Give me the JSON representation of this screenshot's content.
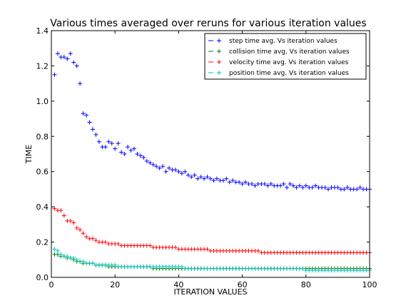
{
  "chart_data": {
    "type": "scatter",
    "title": "Various times averaged over reruns for various iteration values",
    "xlabel": "ITERATION VALUES",
    "ylabel": "TIME",
    "xlim": [
      0,
      100
    ],
    "ylim": [
      0,
      1.4
    ],
    "xticks": [
      "0",
      "20",
      "40",
      "60",
      "80",
      "100"
    ],
    "yticks": [
      "0.0",
      "0.2",
      "0.4",
      "0.6",
      "0.8",
      "1.0",
      "1.2",
      "1.4"
    ],
    "grid": false,
    "legend_position": "top-right",
    "series": [
      {
        "name": "step time avg. Vs iteration values",
        "color": "#0000ff",
        "x": [
          1,
          2,
          3,
          4,
          5,
          6,
          7,
          8,
          9,
          10,
          11,
          12,
          13,
          14,
          15,
          16,
          17,
          18,
          19,
          20,
          21,
          22,
          23,
          24,
          25,
          26,
          27,
          28,
          29,
          30,
          31,
          32,
          33,
          34,
          35,
          36,
          37,
          38,
          39,
          40,
          41,
          42,
          43,
          44,
          45,
          46,
          47,
          48,
          49,
          50,
          51,
          52,
          53,
          54,
          55,
          56,
          57,
          58,
          59,
          60,
          61,
          62,
          63,
          64,
          65,
          66,
          67,
          68,
          69,
          70,
          71,
          72,
          73,
          74,
          75,
          76,
          77,
          78,
          79,
          80,
          81,
          82,
          83,
          84,
          85,
          86,
          87,
          88,
          89,
          90,
          91,
          92,
          93,
          94,
          95,
          96,
          97,
          98,
          99,
          100
        ],
        "y": [
          1.15,
          1.27,
          1.25,
          1.25,
          1.24,
          1.27,
          1.22,
          1.2,
          1.1,
          0.93,
          0.92,
          0.88,
          0.84,
          0.81,
          0.77,
          0.74,
          0.74,
          0.77,
          0.76,
          0.73,
          0.76,
          0.71,
          0.7,
          0.74,
          0.72,
          0.73,
          0.7,
          0.69,
          0.68,
          0.66,
          0.65,
          0.64,
          0.63,
          0.62,
          0.63,
          0.6,
          0.62,
          0.61,
          0.61,
          0.6,
          0.59,
          0.6,
          0.58,
          0.57,
          0.58,
          0.56,
          0.57,
          0.56,
          0.57,
          0.56,
          0.55,
          0.56,
          0.55,
          0.55,
          0.56,
          0.54,
          0.55,
          0.54,
          0.54,
          0.53,
          0.54,
          0.53,
          0.53,
          0.52,
          0.53,
          0.53,
          0.53,
          0.52,
          0.53,
          0.52,
          0.52,
          0.52,
          0.53,
          0.51,
          0.53,
          0.52,
          0.51,
          0.52,
          0.51,
          0.52,
          0.51,
          0.51,
          0.52,
          0.51,
          0.51,
          0.51,
          0.5,
          0.51,
          0.51,
          0.51,
          0.5,
          0.5,
          0.51,
          0.5,
          0.5,
          0.5,
          0.51,
          0.5,
          0.5,
          0.5
        ]
      },
      {
        "name": "collision time avg. Vs iteration values",
        "color": "#008000",
        "x": [
          1,
          2,
          3,
          4,
          5,
          6,
          7,
          8,
          9,
          10,
          11,
          12,
          13,
          14,
          15,
          16,
          17,
          18,
          19,
          20,
          21,
          22,
          23,
          24,
          25,
          26,
          27,
          28,
          29,
          30,
          31,
          32,
          33,
          34,
          35,
          36,
          37,
          38,
          39,
          40,
          41,
          42,
          43,
          44,
          45,
          46,
          47,
          48,
          49,
          50,
          51,
          52,
          53,
          54,
          55,
          56,
          57,
          58,
          59,
          60,
          61,
          62,
          63,
          64,
          65,
          66,
          67,
          68,
          69,
          70,
          71,
          72,
          73,
          74,
          75,
          76,
          77,
          78,
          79,
          80,
          81,
          82,
          83,
          84,
          85,
          86,
          87,
          88,
          89,
          90,
          91,
          92,
          93,
          94,
          95,
          96,
          97,
          98,
          99,
          100
        ],
        "y": [
          0.13,
          0.13,
          0.12,
          0.12,
          0.11,
          0.11,
          0.1,
          0.09,
          0.09,
          0.08,
          0.08,
          0.08,
          0.08,
          0.07,
          0.07,
          0.07,
          0.07,
          0.06,
          0.06,
          0.06,
          0.06,
          0.06,
          0.06,
          0.06,
          0.06,
          0.06,
          0.06,
          0.06,
          0.06,
          0.06,
          0.06,
          0.05,
          0.05,
          0.05,
          0.05,
          0.05,
          0.05,
          0.05,
          0.05,
          0.05,
          0.05,
          0.05,
          0.05,
          0.05,
          0.05,
          0.05,
          0.05,
          0.05,
          0.05,
          0.05,
          0.05,
          0.05,
          0.05,
          0.05,
          0.05,
          0.05,
          0.05,
          0.05,
          0.05,
          0.05,
          0.05,
          0.05,
          0.05,
          0.05,
          0.05,
          0.05,
          0.05,
          0.05,
          0.05,
          0.05,
          0.05,
          0.05,
          0.05,
          0.05,
          0.05,
          0.05,
          0.05,
          0.05,
          0.05,
          0.05,
          0.05,
          0.05,
          0.05,
          0.05,
          0.05,
          0.05,
          0.05,
          0.05,
          0.05,
          0.05,
          0.05,
          0.05,
          0.05,
          0.05,
          0.05,
          0.05,
          0.05,
          0.05,
          0.05,
          0.05
        ]
      },
      {
        "name": "velocity time avg. Vs iteration values",
        "color": "#ff0000",
        "x": [
          1,
          2,
          3,
          4,
          5,
          6,
          7,
          8,
          9,
          10,
          11,
          12,
          13,
          14,
          15,
          16,
          17,
          18,
          19,
          20,
          21,
          22,
          23,
          24,
          25,
          26,
          27,
          28,
          29,
          30,
          31,
          32,
          33,
          34,
          35,
          36,
          37,
          38,
          39,
          40,
          41,
          42,
          43,
          44,
          45,
          46,
          47,
          48,
          49,
          50,
          51,
          52,
          53,
          54,
          55,
          56,
          57,
          58,
          59,
          60,
          61,
          62,
          63,
          64,
          65,
          66,
          67,
          68,
          69,
          70,
          71,
          72,
          73,
          74,
          75,
          76,
          77,
          78,
          79,
          80,
          81,
          82,
          83,
          84,
          85,
          86,
          87,
          88,
          89,
          90,
          91,
          92,
          93,
          94,
          95,
          96,
          97,
          98,
          99,
          100
        ],
        "y": [
          0.39,
          0.38,
          0.38,
          0.35,
          0.32,
          0.32,
          0.31,
          0.28,
          0.27,
          0.25,
          0.23,
          0.22,
          0.22,
          0.21,
          0.2,
          0.2,
          0.2,
          0.19,
          0.19,
          0.19,
          0.19,
          0.18,
          0.18,
          0.18,
          0.18,
          0.18,
          0.18,
          0.18,
          0.18,
          0.18,
          0.18,
          0.17,
          0.17,
          0.17,
          0.17,
          0.17,
          0.17,
          0.17,
          0.17,
          0.16,
          0.16,
          0.16,
          0.16,
          0.16,
          0.16,
          0.16,
          0.16,
          0.16,
          0.16,
          0.15,
          0.15,
          0.15,
          0.15,
          0.15,
          0.15,
          0.15,
          0.15,
          0.15,
          0.15,
          0.15,
          0.15,
          0.15,
          0.15,
          0.15,
          0.15,
          0.14,
          0.14,
          0.14,
          0.14,
          0.14,
          0.14,
          0.14,
          0.14,
          0.14,
          0.14,
          0.14,
          0.14,
          0.14,
          0.14,
          0.14,
          0.14,
          0.14,
          0.14,
          0.14,
          0.14,
          0.14,
          0.14,
          0.14,
          0.14,
          0.14,
          0.14,
          0.14,
          0.14,
          0.14,
          0.14,
          0.14,
          0.14,
          0.14,
          0.14,
          0.14
        ]
      },
      {
        "name": "position time avg. Vs iteration values",
        "color": "#00bfbf",
        "x": [
          1,
          2,
          3,
          4,
          5,
          6,
          7,
          8,
          9,
          10,
          11,
          12,
          13,
          14,
          15,
          16,
          17,
          18,
          19,
          20,
          21,
          22,
          23,
          24,
          25,
          26,
          27,
          28,
          29,
          30,
          31,
          32,
          33,
          34,
          35,
          36,
          37,
          38,
          39,
          40,
          41,
          42,
          43,
          44,
          45,
          46,
          47,
          48,
          49,
          50,
          51,
          52,
          53,
          54,
          55,
          56,
          57,
          58,
          59,
          60,
          61,
          62,
          63,
          64,
          65,
          66,
          67,
          68,
          69,
          70,
          71,
          72,
          73,
          74,
          75,
          76,
          77,
          78,
          79,
          80,
          81,
          82,
          83,
          84,
          85,
          86,
          87,
          88,
          89,
          90,
          91,
          92,
          93,
          94,
          95,
          96,
          97,
          98,
          99,
          100
        ],
        "y": [
          0.16,
          0.15,
          0.13,
          0.12,
          0.12,
          0.11,
          0.11,
          0.1,
          0.09,
          0.09,
          0.08,
          0.08,
          0.08,
          0.07,
          0.07,
          0.07,
          0.07,
          0.07,
          0.07,
          0.07,
          0.06,
          0.06,
          0.06,
          0.06,
          0.06,
          0.06,
          0.06,
          0.06,
          0.06,
          0.06,
          0.06,
          0.06,
          0.06,
          0.06,
          0.06,
          0.06,
          0.06,
          0.06,
          0.06,
          0.06,
          0.06,
          0.05,
          0.05,
          0.05,
          0.05,
          0.05,
          0.05,
          0.05,
          0.05,
          0.05,
          0.05,
          0.05,
          0.05,
          0.05,
          0.05,
          0.05,
          0.05,
          0.05,
          0.05,
          0.05,
          0.05,
          0.05,
          0.05,
          0.05,
          0.05,
          0.05,
          0.05,
          0.05,
          0.05,
          0.05,
          0.05,
          0.05,
          0.05,
          0.05,
          0.05,
          0.05,
          0.05,
          0.05,
          0.05,
          0.04,
          0.04,
          0.04,
          0.04,
          0.04,
          0.04,
          0.04,
          0.04,
          0.04,
          0.04,
          0.04,
          0.04,
          0.04,
          0.04,
          0.04,
          0.04,
          0.04,
          0.04,
          0.04,
          0.04,
          0.04
        ]
      }
    ]
  }
}
